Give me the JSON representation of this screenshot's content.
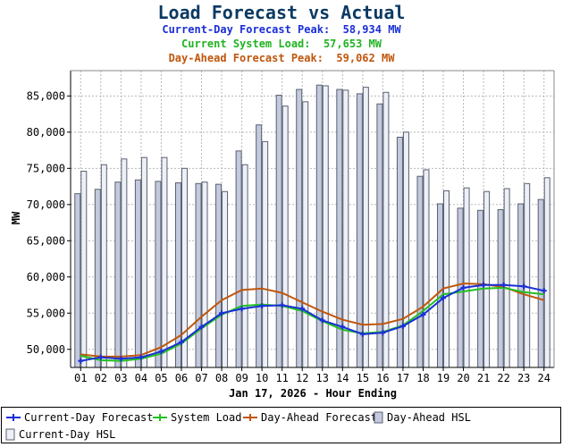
{
  "header": {
    "title": "Load Forecast vs Actual",
    "current_day_peak": "Current-Day Forecast Peak:  58,934 MW",
    "system_load": "Current System Load:  57,653 MW",
    "day_ahead_peak": "Day-Ahead Forecast Peak:  59,062 MW"
  },
  "colors": {
    "current_day": "#1a2fd6",
    "system_load": "#22c022",
    "day_ahead": "#c0560c",
    "day_ahead_hsl": "#c4cade",
    "current_day_hsl": "#eef0f7",
    "bar_stroke": "#5a6070",
    "title": "#0b3a63"
  },
  "chart_data": {
    "type": "bar+line",
    "xlabel": "Jan 17, 2026 - Hour Ending",
    "ylabel": "MW",
    "ylim": [
      47500,
      88500
    ],
    "yticks": [
      50000,
      55000,
      60000,
      65000,
      70000,
      75000,
      80000,
      85000
    ],
    "ytick_labels": [
      "50,000",
      "55,000",
      "60,000",
      "65,000",
      "70,000",
      "75,000",
      "80,000",
      "85,000"
    ],
    "grid": true,
    "legend_position": "bottom",
    "categories": [
      "01",
      "02",
      "03",
      "04",
      "05",
      "06",
      "07",
      "08",
      "09",
      "10",
      "11",
      "12",
      "13",
      "14",
      "15",
      "16",
      "17",
      "18",
      "19",
      "20",
      "21",
      "22",
      "23",
      "24"
    ],
    "bars": [
      {
        "name": "Day-Ahead HSL",
        "values": [
          71500,
          72100,
          73100,
          73400,
          73200,
          73000,
          72900,
          72800,
          77400,
          81000,
          85100,
          85900,
          86500,
          85900,
          85300,
          83900,
          79300,
          73900,
          70100,
          69500,
          69200,
          69300,
          70100,
          70700
        ]
      },
      {
        "name": "Current-Day HSL",
        "values": [
          74600,
          75500,
          76300,
          76500,
          76500,
          75000,
          73100,
          71800,
          75500,
          78700,
          83600,
          84200,
          86400,
          85800,
          86200,
          85500,
          80000,
          74800,
          71900,
          72300,
          71800,
          72200,
          72900,
          73700
        ]
      }
    ],
    "series": [
      {
        "name": "Current-Day Forecast",
        "values": [
          48400,
          48900,
          48700,
          48900,
          49700,
          51000,
          53100,
          55000,
          55600,
          56000,
          56100,
          55600,
          54000,
          53100,
          52100,
          52300,
          53200,
          54800,
          57100,
          58500,
          58900,
          58900,
          58700,
          58100
        ]
      },
      {
        "name": "System Load",
        "values": [
          49100,
          48500,
          48400,
          48700,
          49400,
          50800,
          52900,
          54800,
          56000,
          56200,
          56000,
          55300,
          53900,
          52700,
          52200,
          52400,
          53300,
          55300,
          57600,
          58000,
          58400,
          58500,
          57900,
          57600
        ]
      },
      {
        "name": "Day-Ahead Forecast",
        "values": [
          49300,
          49000,
          49000,
          49200,
          50300,
          52000,
          54500,
          56800,
          58200,
          58400,
          57800,
          56500,
          55200,
          54100,
          53400,
          53500,
          54200,
          55900,
          58400,
          59100,
          59000,
          58600,
          57600,
          56800
        ]
      }
    ]
  }
}
